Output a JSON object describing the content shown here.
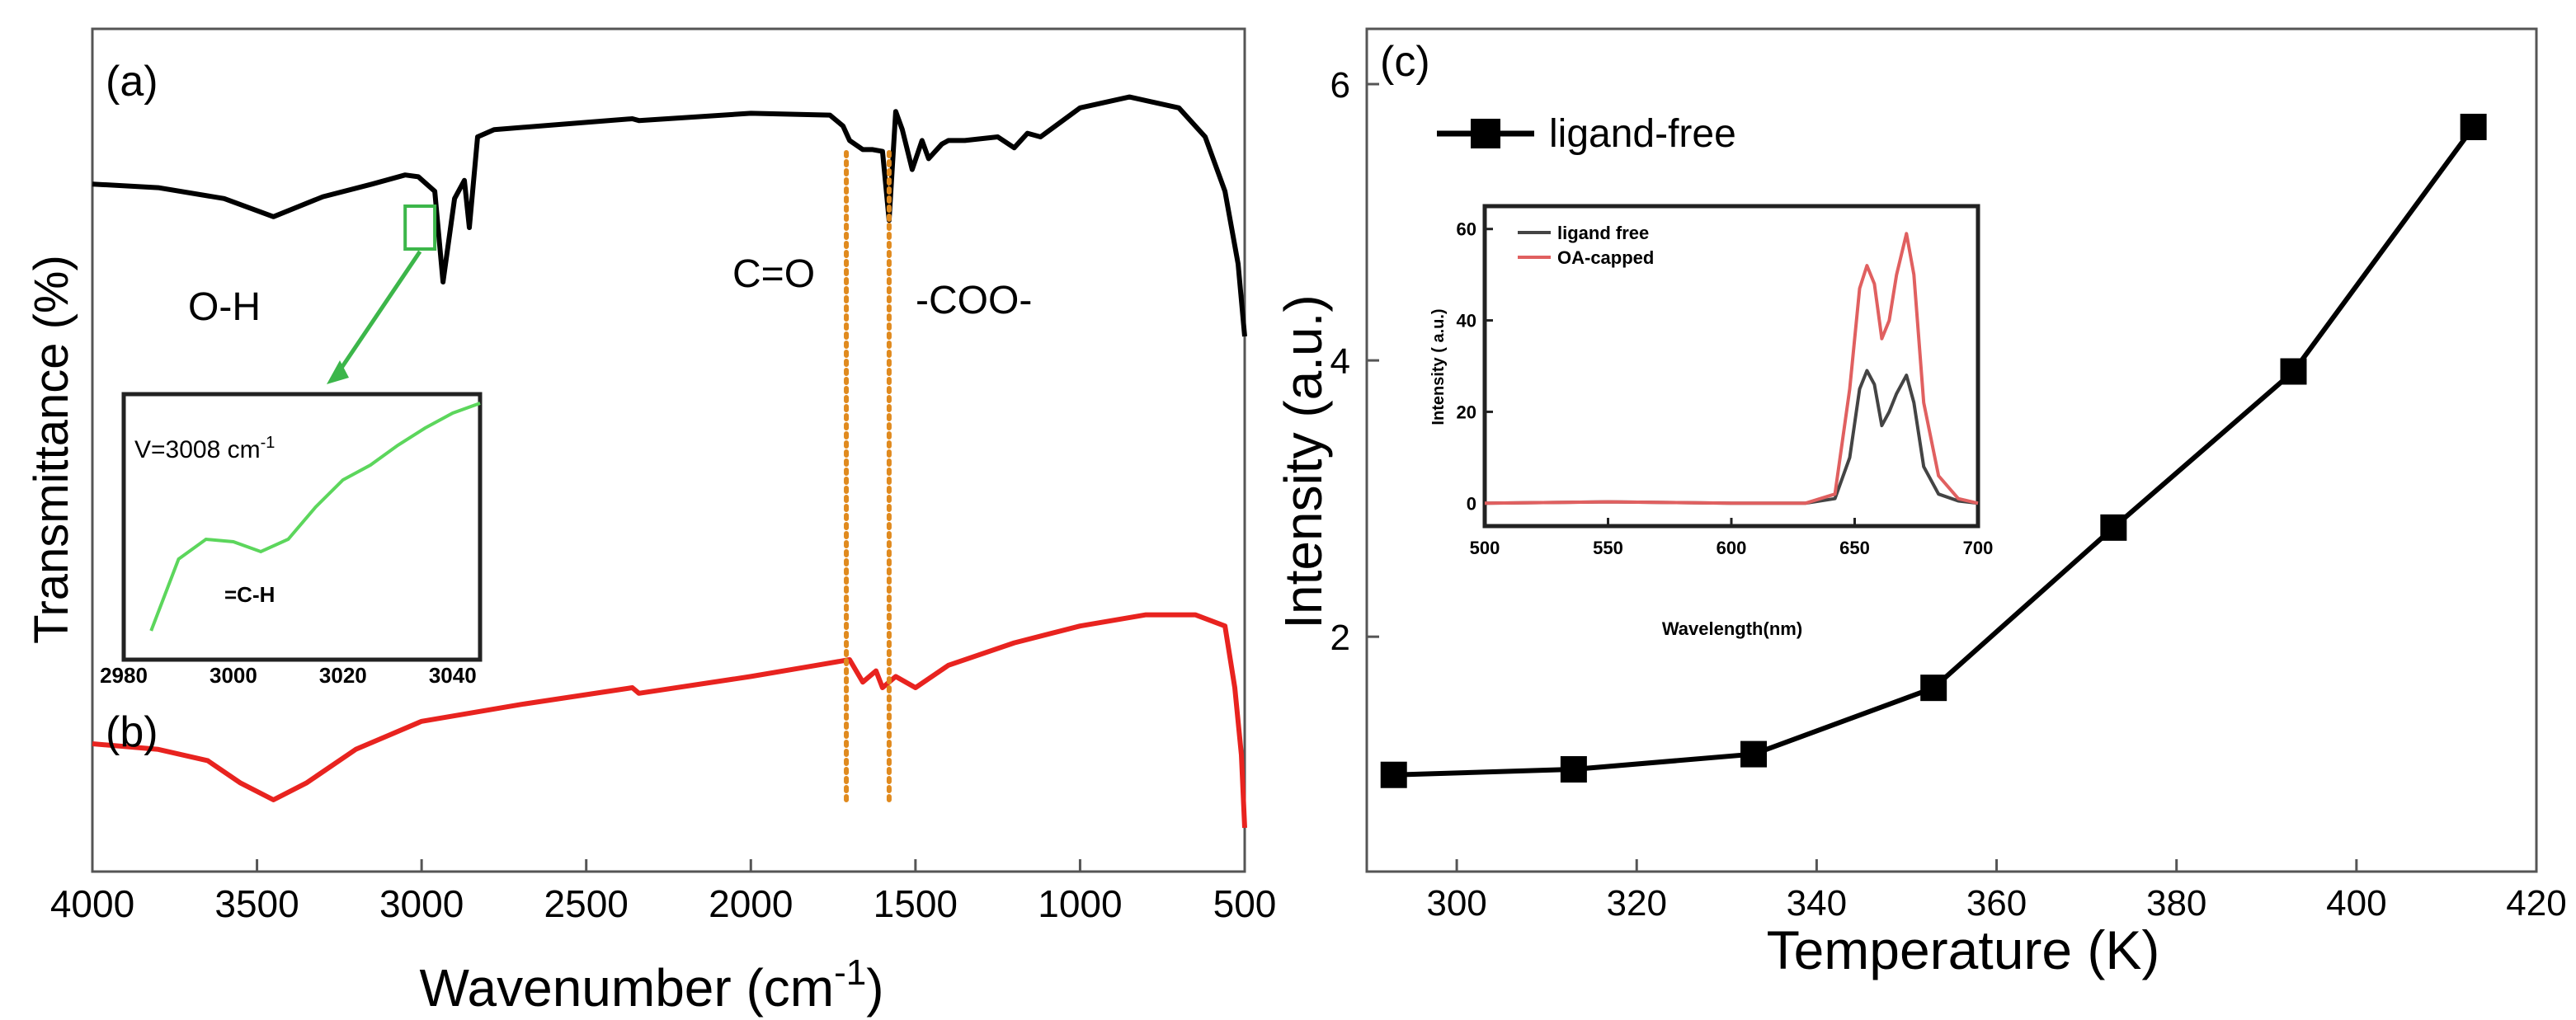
{
  "chart_data": [
    {
      "panel": "a-b",
      "type": "line",
      "title": "",
      "xlabel": "Wavenumber (cm",
      "xlabel_sup": "-1",
      "xlabel_close": ")",
      "ylabel": "Transmittance (%)",
      "xlim": [
        4000,
        500
      ],
      "xticks": [
        4000,
        3500,
        3000,
        2500,
        2000,
        1500,
        1000,
        500
      ],
      "panel_labels": [
        "(a)",
        "(b)"
      ],
      "annotations": [
        "O-H",
        "C=O",
        "-COO-"
      ],
      "series": [
        {
          "name": "(a)",
          "color": "#000000",
          "x": [
            4000,
            3800,
            3600,
            3450,
            3300,
            3150,
            3050,
            3010,
            2960,
            2935,
            2900,
            2870,
            2855,
            2830,
            2780,
            2500,
            2360,
            2340,
            2000,
            1760,
            1720,
            1700,
            1660,
            1630,
            1600,
            1580,
            1560,
            1540,
            1510,
            1480,
            1460,
            1420,
            1400,
            1350,
            1250,
            1200,
            1160,
            1120,
            1000,
            850,
            700,
            620,
            560,
            520,
            500
          ],
          "y": [
            0.72,
            0.71,
            0.68,
            0.63,
            0.685,
            0.72,
            0.745,
            0.74,
            0.7,
            0.45,
            0.68,
            0.73,
            0.6,
            0.85,
            0.87,
            0.89,
            0.9,
            0.895,
            0.915,
            0.91,
            0.88,
            0.84,
            0.815,
            0.815,
            0.81,
            0.62,
            0.92,
            0.87,
            0.76,
            0.84,
            0.79,
            0.83,
            0.84,
            0.84,
            0.85,
            0.82,
            0.86,
            0.85,
            0.93,
            0.96,
            0.93,
            0.85,
            0.7,
            0.5,
            0.3
          ]
        },
        {
          "name": "(b)",
          "color": "#e8231f",
          "x": [
            4000,
            3800,
            3650,
            3550,
            3450,
            3350,
            3200,
            3000,
            2700,
            2360,
            2340,
            2000,
            1800,
            1700,
            1660,
            1620,
            1600,
            1560,
            1500,
            1400,
            1200,
            1000,
            800,
            650,
            560,
            530,
            510,
            500
          ],
          "y": [
            0.1,
            0.09,
            0.07,
            0.03,
            0.0,
            0.03,
            0.09,
            0.14,
            0.17,
            0.2,
            0.19,
            0.22,
            0.24,
            0.25,
            0.21,
            0.23,
            0.2,
            0.22,
            0.2,
            0.24,
            0.28,
            0.31,
            0.33,
            0.33,
            0.31,
            0.2,
            0.08,
            -0.05
          ]
        }
      ],
      "guide_lines_x": [
        1710,
        1580
      ],
      "zoom_marker": {
        "x": [
          3050,
          2960
        ]
      },
      "inset": {
        "type": "line",
        "color": "#5cd65c",
        "label": "V=3008 cm",
        "label_sup": "-1",
        "annotation": "=C-H",
        "xlim": [
          2980,
          3045
        ],
        "xticks": [
          2980,
          3000,
          3020,
          3040
        ],
        "ylim": [
          0,
          1
        ],
        "x": [
          2985,
          2990,
          2995,
          3000,
          3005,
          3010,
          3015,
          3020,
          3025,
          3030,
          3035,
          3040,
          3045
        ],
        "y": [
          0.05,
          0.34,
          0.42,
          0.41,
          0.37,
          0.42,
          0.55,
          0.66,
          0.72,
          0.8,
          0.87,
          0.93,
          0.97
        ]
      }
    },
    {
      "panel": "c",
      "type": "line",
      "title": "",
      "panel_label": "(c)",
      "xlabel": "Temperature (K)",
      "ylabel": "Intensity (a.u.)",
      "xlim": [
        290,
        420
      ],
      "ylim": [
        0.3,
        6.4
      ],
      "xticks": [
        300,
        320,
        340,
        360,
        380,
        400,
        420
      ],
      "yticks": [
        2,
        4,
        6
      ],
      "legend_position": "top-left",
      "series": [
        {
          "name": "ligand-free",
          "color": "#000000",
          "marker": "square",
          "x": [
            293,
            313,
            333,
            353,
            373,
            393,
            413
          ],
          "y": [
            1.0,
            1.04,
            1.15,
            1.63,
            2.79,
            3.92,
            5.69
          ]
        }
      ],
      "inset": {
        "type": "line",
        "xlabel": "Wavelength(nm)",
        "ylabel": "Intensity ( a.u.)",
        "xlim": [
          500,
          700
        ],
        "ylim": [
          -5,
          65
        ],
        "xticks": [
          500,
          550,
          600,
          650,
          700
        ],
        "yticks": [
          0,
          20,
          40,
          60
        ],
        "legend_position": "top-left",
        "series": [
          {
            "name": "ligand free",
            "color": "#444444",
            "x": [
              500,
              550,
              600,
              630,
              642,
              648,
              652,
              655,
              658,
              661,
              664,
              667,
              671,
              674,
              678,
              684,
              692,
              700
            ],
            "y": [
              0,
              0.3,
              0,
              0,
              1,
              10,
              25,
              29,
              26,
              17,
              20,
              24,
              28,
              22,
              8,
              2,
              0.5,
              0
            ]
          },
          {
            "name": "OA-capped",
            "color": "#e06060",
            "x": [
              500,
              550,
              600,
              630,
              642,
              648,
              652,
              655,
              658,
              661,
              664,
              667,
              671,
              674,
              678,
              684,
              692,
              700
            ],
            "y": [
              0,
              0.3,
              0,
              0,
              2,
              25,
              47,
              52,
              48,
              36,
              40,
              50,
              59,
              50,
              22,
              6,
              1,
              0
            ]
          }
        ]
      }
    }
  ]
}
